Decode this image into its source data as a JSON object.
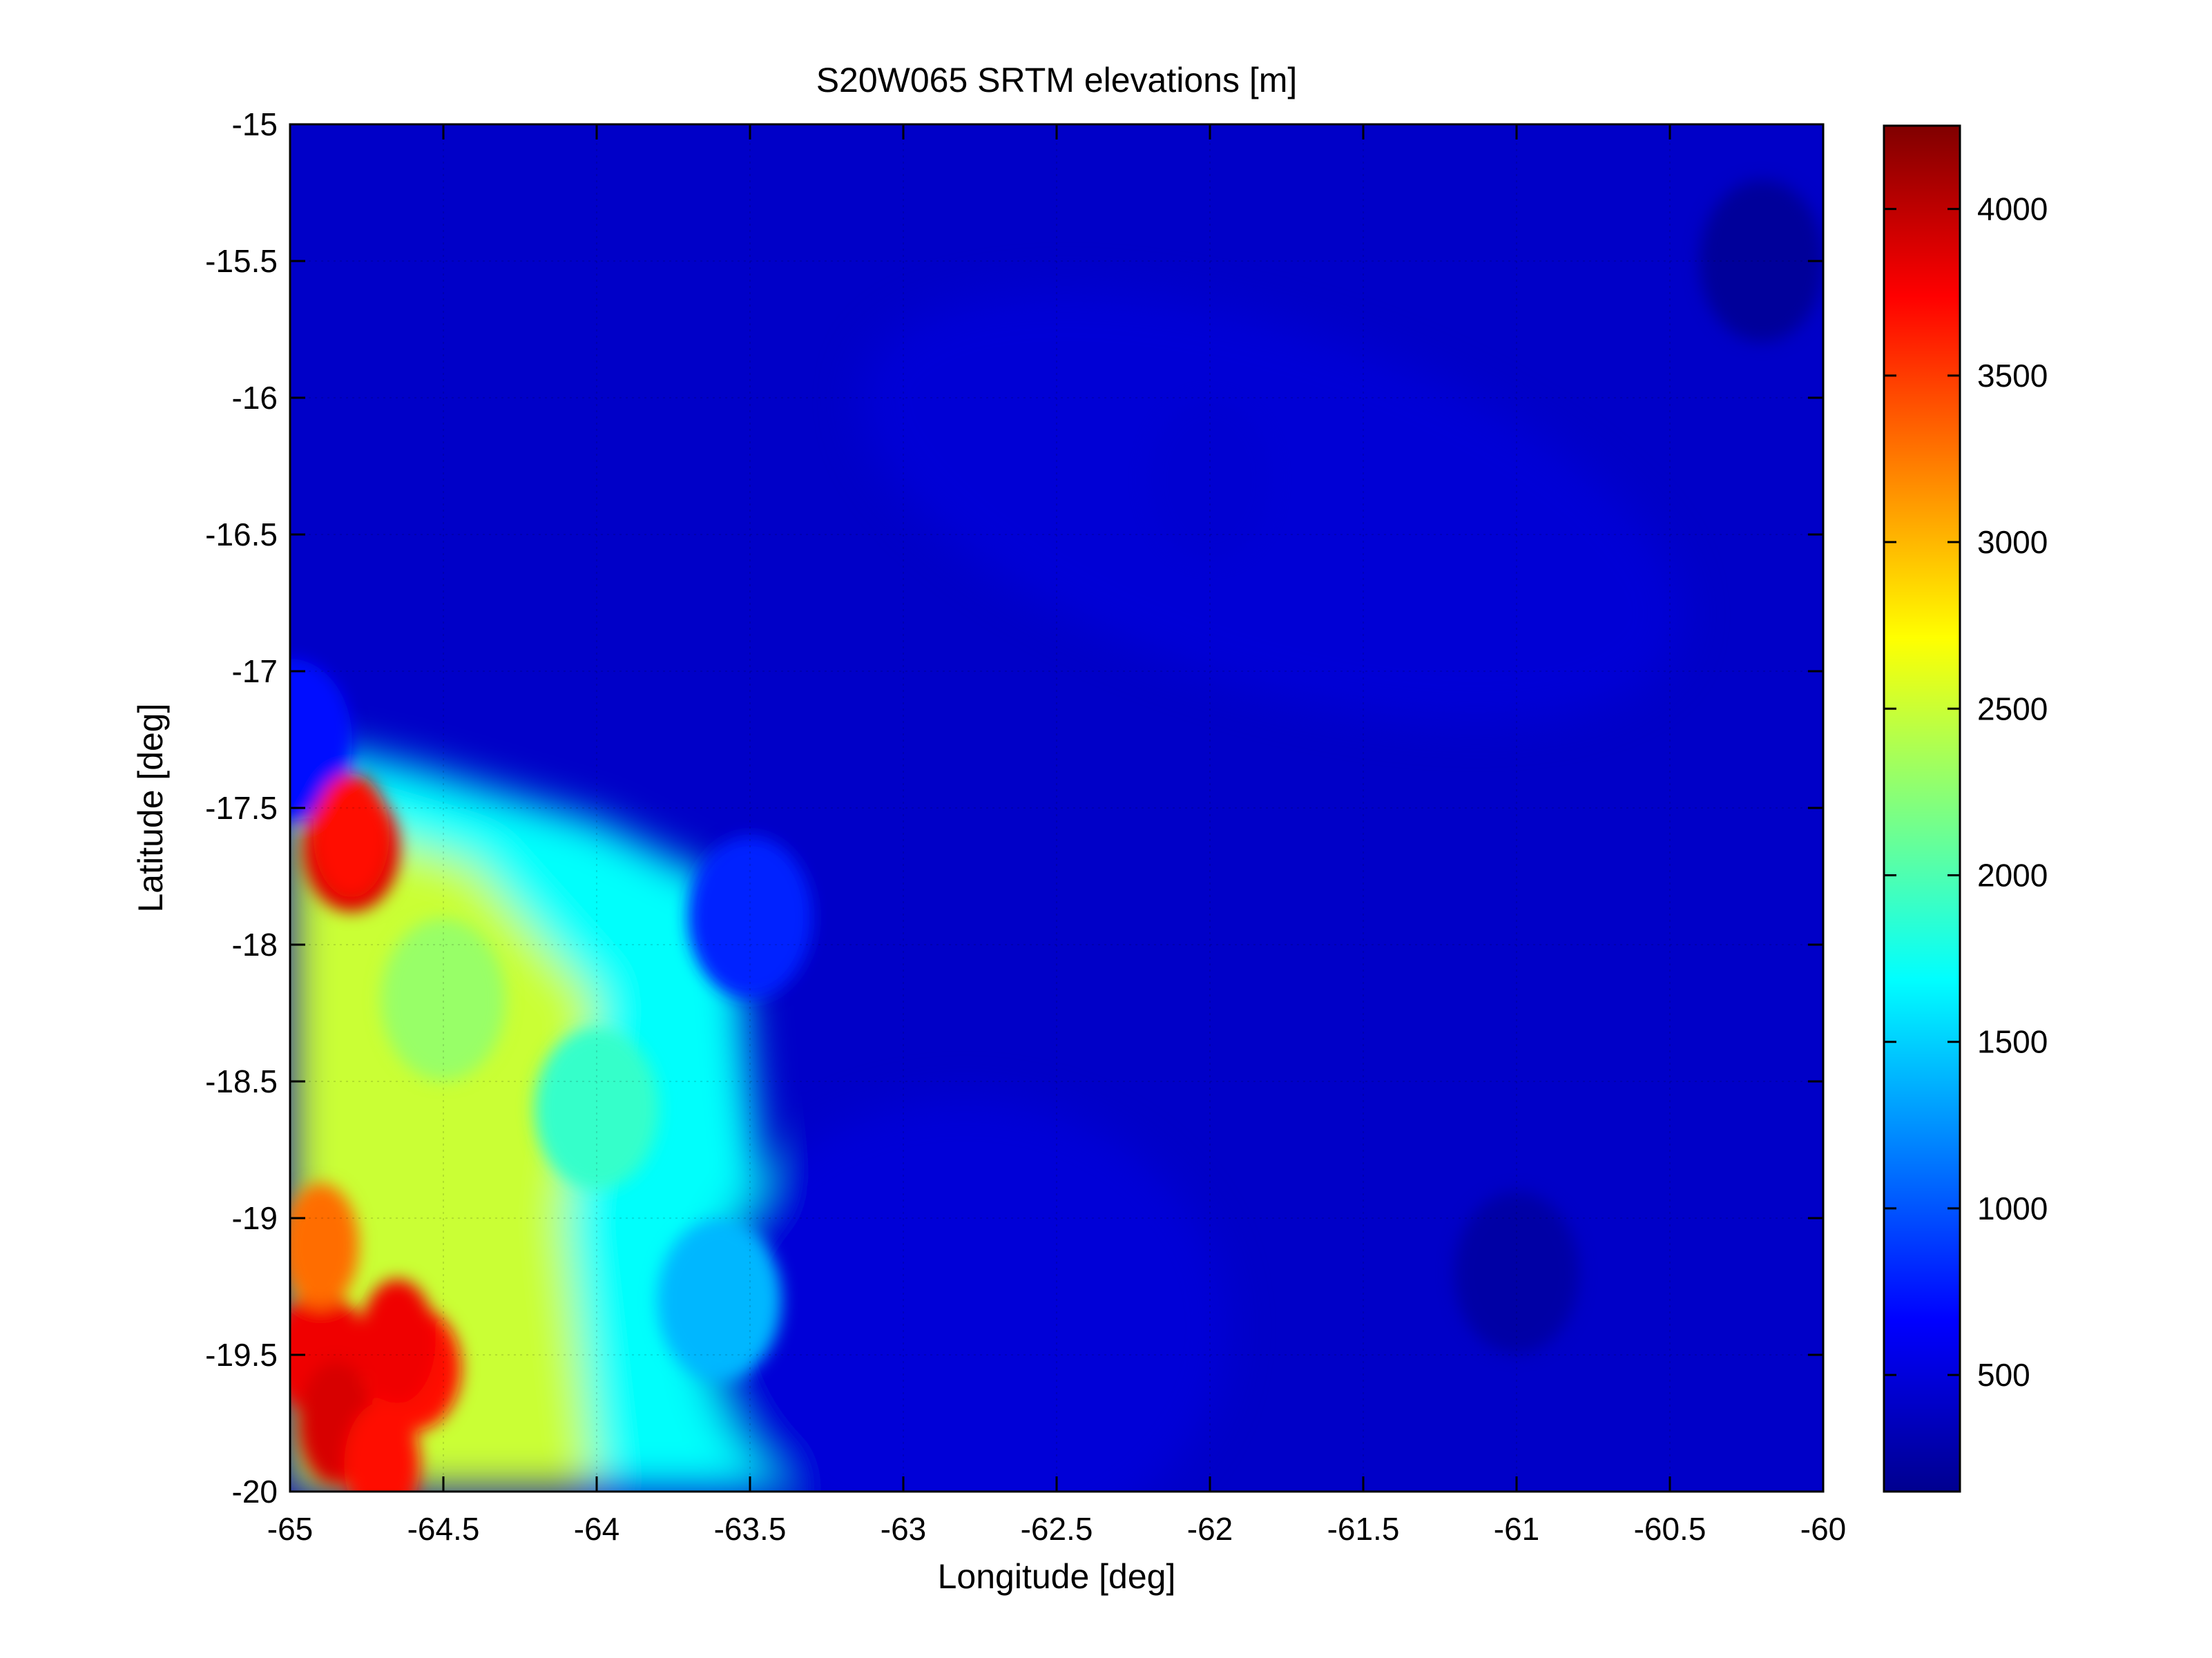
{
  "chart_data": {
    "type": "heatmap",
    "title": "S20W065 SRTM elevations [m]",
    "xlabel": "Longitude [deg]",
    "ylabel": "Latitude [deg]",
    "xlim": [
      -65,
      -60
    ],
    "ylim": [
      -20,
      -15
    ],
    "x_ticks": [
      -65,
      -64.5,
      -64,
      -63.5,
      -63,
      -62.5,
      -62,
      -61.5,
      -61,
      -60.5,
      -60
    ],
    "x_tick_labels": [
      "-65",
      "-64.5",
      "-64",
      "-63.5",
      "-63",
      "-62.5",
      "-62",
      "-61.5",
      "-61",
      "-60.5",
      "-60"
    ],
    "y_ticks": [
      -15,
      -15.5,
      -16,
      -16.5,
      -17,
      -17.5,
      -18,
      -18.5,
      -19,
      -19.5,
      -20
    ],
    "y_tick_labels": [
      "-15",
      "-15.5",
      "-16",
      "-16.5",
      "-17",
      "-17.5",
      "-18",
      "-18.5",
      "-19",
      "-19.5",
      "-20"
    ],
    "grid": "dotted",
    "colormap": "jet",
    "colorbar": {
      "placement": "right",
      "clim": [
        150,
        4250
      ],
      "ticks": [
        500,
        1000,
        1500,
        2000,
        2500,
        3000,
        3500,
        4000
      ],
      "tick_labels": [
        "500",
        "1000",
        "1500",
        "2000",
        "2500",
        "3000",
        "3500",
        "4000"
      ]
    },
    "elevation_features": [
      {
        "lon": -65.0,
        "lat": -17.25,
        "value": 700
      },
      {
        "lon": -64.8,
        "lat": -17.65,
        "value": 3900
      },
      {
        "lon": -64.9,
        "lat": -19.5,
        "value": 3800
      },
      {
        "lon": -64.6,
        "lat": -19.55,
        "value": 3700
      },
      {
        "lon": -64.5,
        "lat": -18.2,
        "value": 2300
      },
      {
        "lon": -64.0,
        "lat": -18.6,
        "value": 1900
      },
      {
        "lon": -63.6,
        "lat": -19.3,
        "value": 1400
      },
      {
        "lon": -63.5,
        "lat": -17.9,
        "value": 800
      },
      {
        "lon": -62.0,
        "lat": -16.3,
        "value": 450
      },
      {
        "lon": -61.0,
        "lat": -19.2,
        "value": 250
      },
      {
        "lon": -60.2,
        "lat": -15.5,
        "value": 200
      }
    ]
  },
  "colors": {
    "jet_stops": [
      "#00008f",
      "#0000ff",
      "#00ffff",
      "#ffff00",
      "#ff0000",
      "#800000"
    ]
  }
}
